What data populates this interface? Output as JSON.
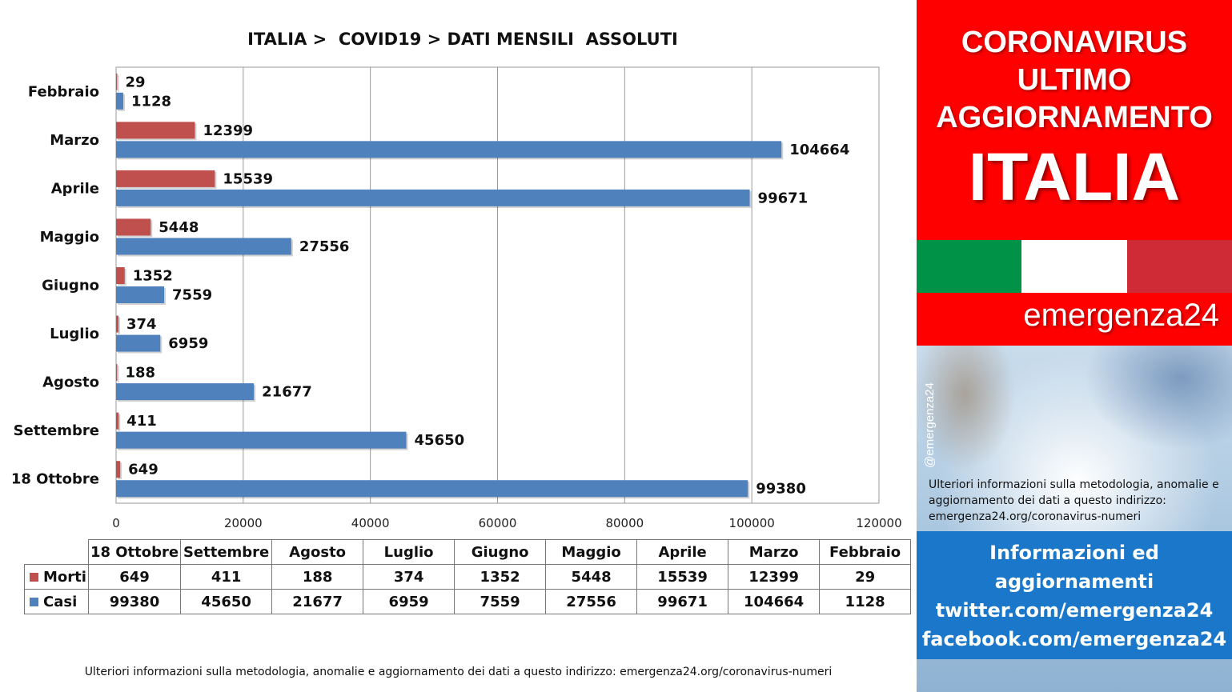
{
  "chart_data": {
    "type": "bar",
    "orientation": "horizontal",
    "title": "ITALIA >  COVID19 > DATI MENSILI  ASSOLUTI",
    "categories": [
      "Febbraio",
      "Marzo",
      "Aprile",
      "Maggio",
      "Giugno",
      "Luglio",
      "Agosto",
      "Settembre",
      "18 Ottobre"
    ],
    "series": [
      {
        "name": "Morti",
        "color": "#c0504d",
        "values": [
          29,
          12399,
          15539,
          5448,
          1352,
          374,
          188,
          411,
          649
        ]
      },
      {
        "name": "Casi",
        "color": "#4f81bd",
        "values": [
          1128,
          104664,
          99671,
          27556,
          7559,
          6959,
          21677,
          45650,
          99380
        ]
      }
    ],
    "xlim": [
      0,
      120000
    ],
    "xticks": [
      "0",
      "20000",
      "40000",
      "60000",
      "80000",
      "100000",
      "120000"
    ],
    "grid": true,
    "legend": "data table below chart"
  },
  "table": {
    "columns": [
      "18 Ottobre",
      "Settembre",
      "Agosto",
      "Luglio",
      "Giugno",
      "Maggio",
      "Aprile",
      "Marzo",
      "Febbraio"
    ],
    "rows": [
      {
        "label": "Morti",
        "color": "#c0504d",
        "values": [
          "649",
          "411",
          "188",
          "374",
          "1352",
          "5448",
          "15539",
          "12399",
          "29"
        ]
      },
      {
        "label": "Casi",
        "color": "#4f81bd",
        "values": [
          "99380",
          "45650",
          "21677",
          "6959",
          "7559",
          "27556",
          "99671",
          "104664",
          "1128"
        ]
      }
    ]
  },
  "footer": "Ulteriori informazioni sulla metodologia, anomalie e aggiornamento dei dati a questo indirizzo: emergenza24.org/coronavirus-numeri",
  "side": {
    "line1": "CORONAVIRUS",
    "line2": "ULTIMO",
    "line3": "AGGIORNAMENTO",
    "big": "ITALIA",
    "flag_colors": [
      "#009246",
      "#ffffff",
      "#ce2b37"
    ],
    "brand": "emergenza24",
    "handle": "@emergenza24",
    "method_note": "Ulteriori informazioni sulla metodologia, anomalie e aggiornamento dei dati a questo indirizzo: emergenza24.org/coronavirus-numeri",
    "info": [
      "Informazioni ed",
      "aggiornamenti",
      "twitter.com/emergenza24",
      "facebook.com/emergenza24"
    ]
  }
}
